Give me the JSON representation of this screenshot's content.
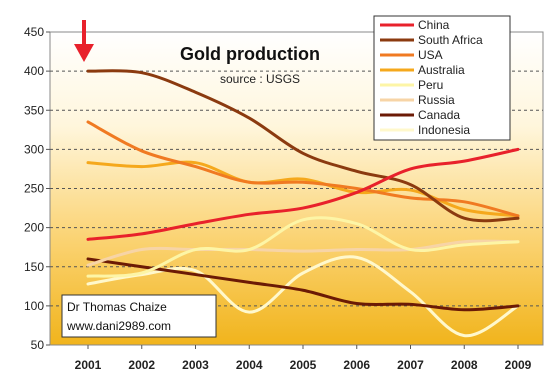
{
  "chart_data": {
    "type": "line",
    "title": "Gold production",
    "subtitle": "source : USGS",
    "x": [
      2001,
      2002,
      2003,
      2004,
      2005,
      2006,
      2007,
      2008,
      2009
    ],
    "ylim": [
      50,
      450
    ],
    "yticks": [
      50,
      100,
      150,
      200,
      250,
      300,
      350,
      400,
      450
    ],
    "grid": true,
    "legend": "top-right",
    "credit": [
      "Dr Thomas Chaize",
      "www.dani2989.com"
    ],
    "series": [
      {
        "name": "China",
        "color": "#e8212b",
        "values": [
          185,
          192,
          205,
          217,
          225,
          245,
          275,
          285,
          300
        ]
      },
      {
        "name": "South Africa",
        "color": "#8b3a0f",
        "values": [
          400,
          398,
          373,
          340,
          295,
          272,
          255,
          212,
          212
        ]
      },
      {
        "name": "USA",
        "color": "#f07a22",
        "values": [
          335,
          298,
          278,
          258,
          258,
          250,
          238,
          233,
          215
        ]
      },
      {
        "name": "Australia",
        "color": "#f5a81c",
        "values": [
          283,
          278,
          283,
          258,
          262,
          245,
          248,
          223,
          215
        ]
      },
      {
        "name": "Peru",
        "color": "#fdf5a6",
        "values": [
          138,
          142,
          172,
          172,
          210,
          205,
          172,
          178,
          182
        ]
      },
      {
        "name": "Russia",
        "color": "#f7d4a6",
        "values": [
          152,
          172,
          172,
          172,
          170,
          172,
          172,
          182,
          182
        ]
      },
      {
        "name": "Canada",
        "color": "#6b1a05",
        "values": [
          160,
          150,
          140,
          130,
          120,
          103,
          102,
          95,
          100
        ]
      },
      {
        "name": "Indonesia",
        "color": "#fff8cc",
        "values": [
          128,
          140,
          145,
          92,
          142,
          162,
          118,
          62,
          100
        ]
      }
    ]
  }
}
